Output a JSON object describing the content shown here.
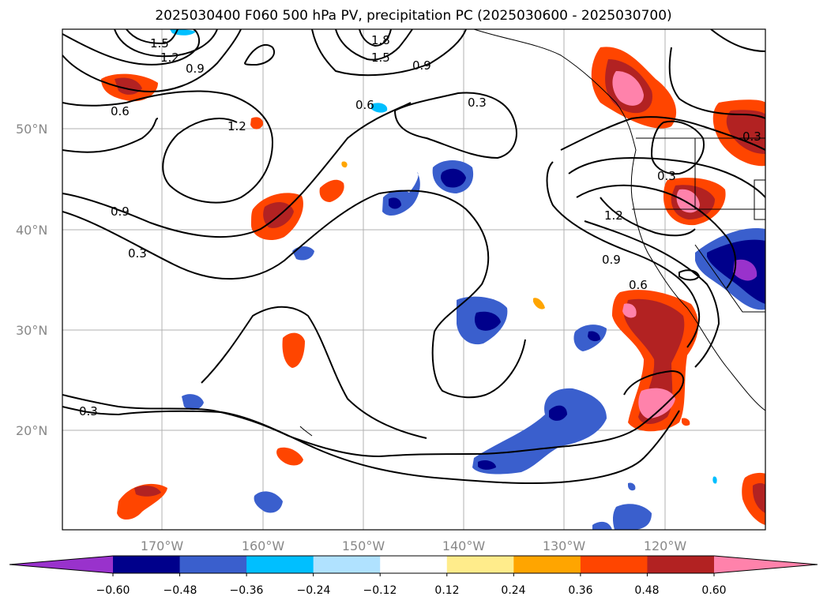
{
  "title": "2025030400 F060 500 hPa PV, precipitation PC (2025030600 - 2025030700)",
  "lat_labels": [
    "50°N",
    "40°N",
    "30°N",
    "20°N"
  ],
  "lon_labels": [
    "170°W",
    "160°W",
    "150°W",
    "140°W",
    "130°W",
    "120°W"
  ],
  "contour_labels": [
    "1.5",
    "1.2",
    "0.9",
    "1.8",
    "1.5",
    "0.9",
    "0.6",
    "0.6",
    "0.3",
    "1.2",
    "0.9",
    "0.3",
    "0.3",
    "1.2",
    "0.9",
    "0.6",
    "0.3",
    "0.3"
  ],
  "colorbar": {
    "ticks": [
      "−0.60",
      "−0.48",
      "−0.36",
      "−0.24",
      "−0.12",
      "0.12",
      "0.24",
      "0.36",
      "0.48",
      "0.60"
    ],
    "colors": [
      "#9932CC",
      "#00008B",
      "#3A5FCD",
      "#00BFFF",
      "#B0E2FF",
      "#FFFFFF",
      "#FFEC8B",
      "#FFA500",
      "#FF4500",
      "#B22222",
      "#FF82AB"
    ]
  }
}
